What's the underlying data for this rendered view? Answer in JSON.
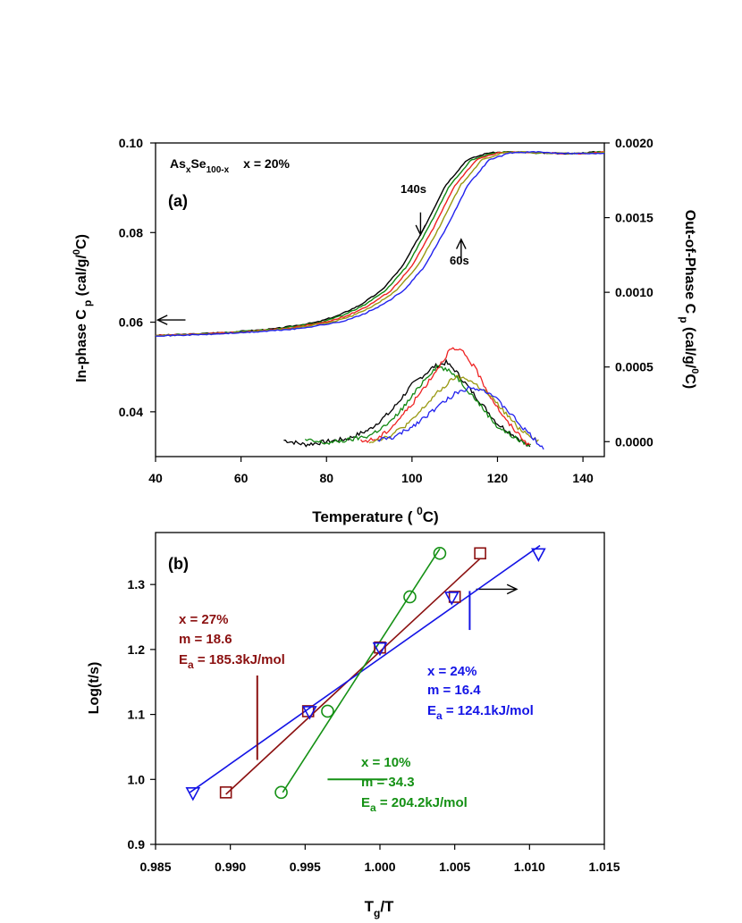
{
  "chart_data": [
    {
      "panel": "(a)",
      "type": "line",
      "xlabel": "Temperature ( ",
      "xlabel_sup": "0",
      "xlabel_tail": "C)",
      "xlim": [
        40,
        145
      ],
      "xticks": [
        40,
        60,
        80,
        100,
        120,
        140
      ],
      "left_axis": {
        "label": "In-phase C",
        "label_sub": "p",
        "label_unit": " (cal/g/",
        "label_unit_sup": "0",
        "label_unit_tail": "C)",
        "ylim": [
          0.03,
          0.1
        ],
        "ticks": [
          0.04,
          0.06,
          0.08,
          0.1
        ],
        "tick_labels": [
          "0.04",
          "0.06",
          "0.08",
          "0.10"
        ]
      },
      "right_axis": {
        "label": "Out-of-Phase C",
        "label_sub": "p",
        "label_unit": " (cal/g/",
        "label_unit_sup": "0",
        "label_unit_tail": "C)",
        "ylim": [
          -0.0001,
          0.002
        ],
        "ticks": [
          0.0,
          0.0005,
          0.001,
          0.0015,
          0.002
        ],
        "tick_labels": [
          "0.0000",
          "0.0005",
          "0.0010",
          "0.0015",
          "0.0020"
        ]
      },
      "title_parts": {
        "as": "As",
        "x_sub": "x",
        "se": "Se",
        "se_sub": "100-x",
        "comp": "x = 20%"
      },
      "panel_label": "(a)",
      "annotations": [
        {
          "text": "140s",
          "x": 104,
          "y": 0.0855
        },
        {
          "text": "60s",
          "x": 113,
          "y": 0.0735
        }
      ],
      "arrows": [
        {
          "name": "in-phase-left-arrow",
          "from": [
            47,
            0.0605
          ],
          "to": [
            40.5,
            0.0605
          ],
          "axis": "left"
        },
        {
          "name": "out-of-phase-right-arrow",
          "from": [
            115,
            0.0004
          ],
          "to": [
            124.5,
            0.0004
          ],
          "axis": "left"
        },
        {
          "name": "arrow-140s",
          "from": [
            102,
            0.0845
          ],
          "to": [
            102,
            0.0795
          ],
          "axis": "left"
        },
        {
          "name": "arrow-60s",
          "from": [
            111.5,
            0.0735
          ],
          "to": [
            111.5,
            0.0785
          ],
          "axis": "left"
        }
      ],
      "colors": [
        "#000000",
        "#118811",
        "#ee2222",
        "#999911",
        "#2222ee"
      ],
      "series_names": [
        "140s",
        "in-phase-2",
        "in-phase-3",
        "in-phase-4",
        "60s"
      ],
      "in_phase_shift": [
        -2.2,
        -1.2,
        0,
        1.3,
        3
      ],
      "in_phase_x": [
        40,
        50,
        60,
        70,
        80,
        85,
        90,
        95,
        100,
        105,
        110,
        115,
        120,
        125,
        130,
        140,
        145
      ],
      "in_phase_y": [
        0.057,
        0.0573,
        0.0578,
        0.0585,
        0.06,
        0.0615,
        0.0638,
        0.067,
        0.0725,
        0.081,
        0.0905,
        0.0962,
        0.0978,
        0.098,
        0.0978,
        0.0976,
        0.098
      ],
      "out_phase": [
        {
          "name": "140s",
          "color": "#000000",
          "x": [
            70,
            75,
            80,
            85,
            90,
            95,
            100,
            105,
            108,
            110,
            115,
            120,
            125,
            128
          ],
          "y": [
            1e-05,
            -2e-05,
            0.0,
            2e-05,
            8e-05,
            0.0002,
            0.00038,
            0.0005,
            0.00053,
            0.00048,
            0.0003,
            0.00012,
            2e-05,
            -5e-05
          ]
        },
        {
          "name": "in-phase-2",
          "color": "#118811",
          "x": [
            75,
            80,
            85,
            90,
            95,
            100,
            103,
            106,
            110,
            115,
            120,
            125,
            128
          ],
          "y": [
            1e-05,
            -1e-05,
            1e-05,
            4e-05,
            0.00013,
            0.0003,
            0.00042,
            0.00051,
            0.00045,
            0.00028,
            0.0001,
            1e-05,
            -3e-05
          ]
        },
        {
          "name": "in-phase-3",
          "color": "#ee2222",
          "x": [
            88,
            92,
            95,
            100,
            105,
            109,
            112,
            115,
            118,
            122,
            126,
            128
          ],
          "y": [
            0.0,
            2e-05,
            9e-05,
            0.00025,
            0.00045,
            0.00062,
            0.0006,
            0.00048,
            0.00032,
            0.00014,
            2e-05,
            -5e-05
          ]
        },
        {
          "name": "in-phase-4",
          "color": "#999911",
          "x": [
            90,
            95,
            100,
            105,
            110,
            113,
            117,
            120,
            125,
            130
          ],
          "y": [
            0.0,
            4e-05,
            0.00014,
            0.0003,
            0.00043,
            0.00042,
            0.00034,
            0.00025,
            9e-05,
            0.0
          ]
        },
        {
          "name": "60s",
          "color": "#2222ee",
          "x": [
            92,
            96,
            100,
            105,
            110,
            114,
            118,
            122,
            126,
            131
          ],
          "y": [
            1e-05,
            3e-05,
            0.0001,
            0.00021,
            0.00032,
            0.00037,
            0.00033,
            0.00022,
            9e-05,
            -5e-05
          ]
        }
      ]
    },
    {
      "panel": "(b)",
      "type": "scatter",
      "panel_label": "(b)",
      "xlabel": "T",
      "xlabel_sub": "g",
      "xlabel_tail": "/T",
      "ylabel": "Log(t/s)",
      "xlim": [
        0.985,
        1.015
      ],
      "ylim": [
        0.9,
        1.38
      ],
      "xticks": [
        0.985,
        0.99,
        0.995,
        1.0,
        1.005,
        1.01,
        1.015
      ],
      "xtick_labels": [
        "0.985",
        "0.990",
        "0.995",
        "1.000",
        "1.005",
        "1.010",
        "1.015"
      ],
      "yticks": [
        0.9,
        1.0,
        1.1,
        1.2,
        1.3
      ],
      "ytick_labels": [
        "0.9",
        "1.0",
        "1.1",
        "1.2",
        "1.3"
      ],
      "series": [
        {
          "name": "x = 27%",
          "marker": "square",
          "color": "#8b1010",
          "x": [
            0.9897,
            0.9952,
            1.0,
            1.005,
            1.0067
          ],
          "y": [
            0.98,
            1.105,
            1.203,
            1.281,
            1.348
          ],
          "fit": {
            "x": [
              0.9897,
              1.0067
            ],
            "y": [
              0.977,
              1.34
            ]
          },
          "legend": {
            "line1": "x = 27%",
            "line2": "m = 18.6",
            "line3_prefix": "E",
            "line3_sub": "a",
            "line3_tail": " = 185.3kJ/mol"
          }
        },
        {
          "name": "x = 24%",
          "marker": "triangle-down",
          "color": "#1414e6",
          "x": [
            0.9875,
            0.9953,
            1.0,
            1.0048,
            1.0106
          ],
          "y": [
            0.98,
            1.105,
            1.203,
            1.281,
            1.348
          ],
          "fit": {
            "x": [
              0.9873,
              1.0107
            ],
            "y": [
              0.98,
              1.36
            ]
          },
          "legend": {
            "line1": "x = 24%",
            "line2": "m = 16.4",
            "line3_prefix": "E",
            "line3_sub": "a",
            "line3_tail": " = 124.1kJ/mol"
          }
        },
        {
          "name": "x = 10%",
          "marker": "circle",
          "color": "#159115",
          "x": [
            0.9934,
            0.9965,
            1.002,
            1.004
          ],
          "y": [
            0.98,
            1.105,
            1.281,
            1.348
          ],
          "fit": {
            "x": [
              0.9935,
              1.004
            ],
            "y": [
              0.98,
              1.355
            ]
          },
          "legend": {
            "line1": "x = 10%",
            "line2": "m = 34.3",
            "line3_prefix": "E",
            "line3_sub": "a",
            "line3_tail": " = 204.2kJ/mol"
          }
        }
      ],
      "pointer_lines": [
        {
          "color": "#8b1010",
          "from": [
            0.9918,
            1.16
          ],
          "to": [
            0.9918,
            1.03
          ]
        },
        {
          "color": "#1414e6",
          "from": [
            1.006,
            1.29
          ],
          "to": [
            1.006,
            1.23
          ]
        },
        {
          "color": "#159115",
          "from": [
            0.9965,
            1.0
          ],
          "to": [
            1.0005,
            1.0
          ]
        }
      ]
    }
  ]
}
